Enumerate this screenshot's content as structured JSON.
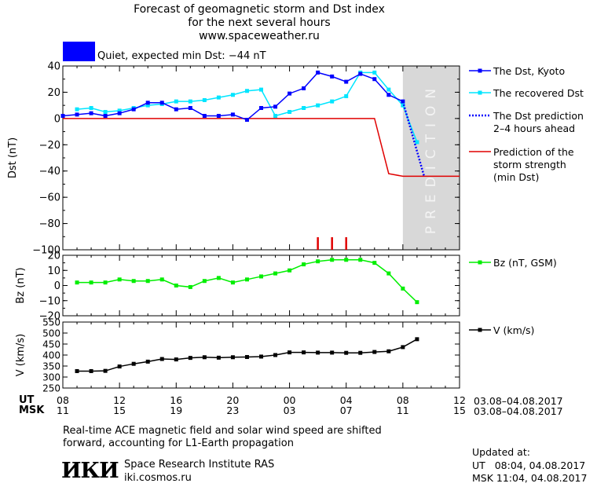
{
  "header": {
    "title_line1": "Forecast of geomagnetic storm and Dst index",
    "title_line2": "for the next several hours",
    "site": "www.spaceweather.ru",
    "status_text": "Quiet, expected min Dst: −44 nT",
    "status_color": "#0000ff"
  },
  "colors": {
    "dst_kyoto": "#0000ff",
    "dst_recovered": "#00e5ff",
    "dst_prediction": "#0000ff",
    "storm_strength": "#e00000",
    "bz": "#00ee00",
    "v": "#000000",
    "prediction_band": "#d8d8d8"
  },
  "chart_data": [
    {
      "type": "line",
      "ylabel": "Dst (nT)",
      "ylim": [
        -100,
        40
      ],
      "yticks": [
        40,
        20,
        0,
        -20,
        -40,
        -60,
        -80,
        -100
      ],
      "xlim": [
        0,
        28
      ],
      "band_label": "PREDICTION",
      "band_range": [
        24,
        28
      ],
      "red_ticks_x": [
        18,
        19,
        20
      ],
      "series": [
        {
          "name": "The Dst, Kyoto",
          "x": [
            0,
            1,
            2,
            3,
            4,
            5,
            6,
            7,
            8,
            9,
            10,
            11,
            12,
            13,
            14,
            15,
            16,
            17,
            18,
            19,
            20,
            21,
            22,
            23,
            24
          ],
          "y": [
            2,
            3,
            4,
            2,
            4,
            7,
            12,
            12,
            7,
            8,
            2,
            2,
            3,
            -1,
            8,
            9,
            19,
            23,
            35,
            32,
            28,
            34,
            30,
            18,
            13
          ]
        },
        {
          "name": "The recovered Dst",
          "x": [
            1,
            2,
            3,
            4,
            5,
            6,
            7,
            8,
            9,
            10,
            11,
            12,
            13,
            14,
            15,
            16,
            17,
            18,
            19,
            20,
            21,
            22,
            23,
            24,
            25
          ],
          "y": [
            7,
            8,
            5,
            6,
            8,
            10,
            11,
            13,
            13,
            14,
            16,
            18,
            21,
            22,
            2,
            5,
            8,
            10,
            13,
            17,
            35,
            35,
            22,
            10,
            -18
          ]
        },
        {
          "name": "The Dst prediction 2–4 hours ahead",
          "x": [
            24,
            25.5
          ],
          "y": [
            13,
            -44
          ]
        },
        {
          "name": "Prediction of the storm strength (min Dst)",
          "x": [
            0,
            22,
            23,
            24,
            28
          ],
          "y": [
            0,
            0,
            -42,
            -44,
            -44
          ]
        }
      ]
    },
    {
      "type": "line",
      "ylabel": "Bz (nT)",
      "ylim": [
        -20,
        20
      ],
      "yticks": [
        20,
        10,
        0,
        -10,
        -20
      ],
      "xlim": [
        0,
        28
      ],
      "series": [
        {
          "name": "Bz (nT, GSM)",
          "x": [
            1,
            2,
            3,
            4,
            5,
            6,
            7,
            8,
            9,
            10,
            11,
            12,
            13,
            14,
            15,
            16,
            17,
            18,
            19,
            20,
            21,
            22,
            23,
            24,
            25
          ],
          "y": [
            2,
            2,
            2,
            4,
            3,
            3,
            4,
            0,
            -1,
            3,
            5,
            2,
            4,
            6,
            8,
            10,
            14,
            16,
            17,
            17,
            17,
            15,
            8,
            -2,
            -11
          ]
        }
      ]
    },
    {
      "type": "line",
      "ylabel": "V (km/s)",
      "ylim": [
        250,
        550
      ],
      "yticks": [
        550,
        500,
        450,
        400,
        350,
        300,
        250
      ],
      "xlim": [
        0,
        28
      ],
      "series": [
        {
          "name": "V (km/s)",
          "x": [
            1,
            2,
            3,
            4,
            5,
            6,
            7,
            8,
            9,
            10,
            11,
            12,
            13,
            14,
            15,
            16,
            17,
            18,
            19,
            20,
            21,
            22,
            23,
            24,
            25
          ],
          "y": [
            327,
            327,
            328,
            348,
            360,
            370,
            382,
            380,
            387,
            390,
            388,
            390,
            391,
            393,
            400,
            412,
            412,
            411,
            411,
            410,
            410,
            414,
            417,
            436,
            472
          ]
        }
      ]
    }
  ],
  "legend": {
    "dst_kyoto": "The Dst, Kyoto",
    "recovered": "The recovered Dst",
    "prediction_l1": "The Dst prediction",
    "prediction_l2": "2–4 hours ahead",
    "strength_l1": "Prediction of the",
    "strength_l2": "storm strength",
    "strength_l3": "(min Dst)",
    "bz": "Bz (nT, GSM)",
    "v": "V (km/s)"
  },
  "time_axis": {
    "ut_label": "UT",
    "msk_label": "MSK",
    "ut_ticks": [
      "08",
      "12",
      "16",
      "20",
      "00",
      "04",
      "08",
      "12"
    ],
    "msk_ticks": [
      "11",
      "15",
      "19",
      "23",
      "03",
      "07",
      "11",
      "15"
    ],
    "range_ut": "03.08–04.08.2017",
    "range_msk": "03.08–04.08.2017"
  },
  "footer": {
    "note_line1": "Real-time ACE magnetic field and solar wind speed are shifted",
    "note_line2": "forward, accounting for L1-Earth propagation",
    "logo_text": "ИКИ",
    "institute": "Space Research Institute RAS",
    "site": "iki.cosmos.ru",
    "updated_label": "Updated at:",
    "ut_updated": "UT   08:04, 04.08.2017",
    "msk_updated": "MSK 11:04, 04.08.2017"
  }
}
